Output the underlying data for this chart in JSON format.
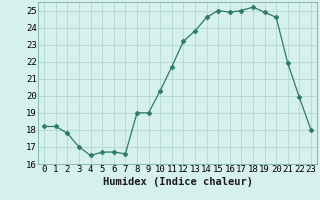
{
  "x": [
    0,
    1,
    2,
    3,
    4,
    5,
    6,
    7,
    8,
    9,
    10,
    11,
    12,
    13,
    14,
    15,
    16,
    17,
    18,
    19,
    20,
    21,
    22,
    23
  ],
  "y": [
    18.2,
    18.2,
    17.8,
    17.0,
    16.5,
    16.7,
    16.7,
    16.6,
    19.0,
    19.0,
    20.3,
    21.7,
    23.2,
    23.8,
    24.6,
    25.0,
    24.9,
    25.0,
    25.2,
    24.9,
    24.6,
    21.9,
    19.9,
    18.0
  ],
  "line_color": "#2d7a68",
  "marker": "D",
  "marker_size": 2.5,
  "bg_color": "#d6f0eb",
  "grid_color": "#aad4cc",
  "xlabel": "Humidex (Indice chaleur)",
  "ylim": [
    16,
    25.5
  ],
  "xlim": [
    -0.5,
    23.5
  ],
  "yticks": [
    16,
    17,
    18,
    19,
    20,
    21,
    22,
    23,
    24,
    25
  ],
  "xtick_labels": [
    "0",
    "1",
    "2",
    "3",
    "4",
    "5",
    "6",
    "7",
    "8",
    "9",
    "10",
    "11",
    "12",
    "13",
    "14",
    "15",
    "16",
    "17",
    "18",
    "19",
    "20",
    "21",
    "22",
    "23"
  ],
  "tick_fontsize": 6.5,
  "xlabel_fontsize": 7.5
}
